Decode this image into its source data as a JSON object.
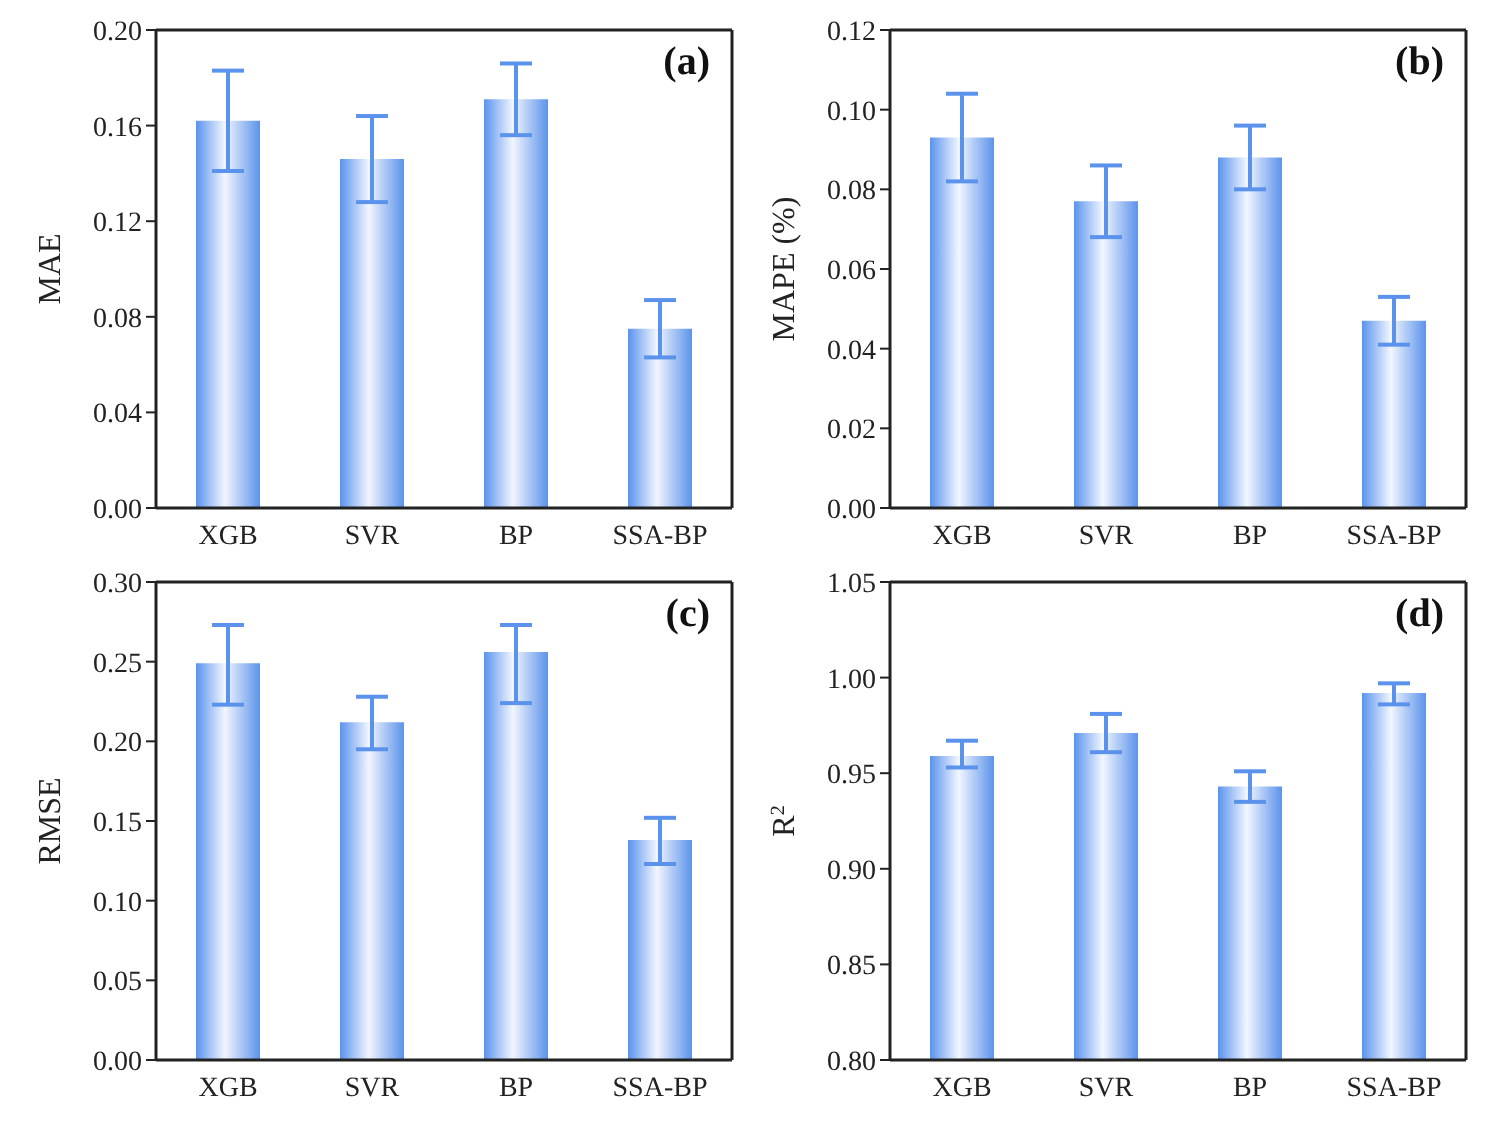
{
  "chart_data": [
    {
      "type": "bar",
      "ylabel": "MAE",
      "annotations": [
        "(a)"
      ],
      "categories": [
        "XGB",
        "SVR",
        "BP",
        "SSA-BP"
      ],
      "values": [
        0.162,
        0.146,
        0.171,
        0.075
      ],
      "errors": [
        [
          0.141,
          0.183
        ],
        [
          0.128,
          0.164
        ],
        [
          0.156,
          0.186
        ],
        [
          0.063,
          0.087
        ]
      ],
      "color": "#5b93ec",
      "ylim": [
        0,
        0.2
      ],
      "yticks": [
        {
          "value": 0,
          "label": "0.00"
        },
        {
          "value": 0.04,
          "label": "0.04"
        },
        {
          "value": 0.08,
          "label": "0.08"
        },
        {
          "value": 0.12,
          "label": "0.12"
        },
        {
          "value": 0.16,
          "label": "0.16"
        },
        {
          "value": 0.2,
          "label": "0.20"
        }
      ]
    },
    {
      "type": "bar",
      "ylabel": "MAPE (%)",
      "annotations": [
        "(b)"
      ],
      "categories": [
        "XGB",
        "SVR",
        "BP",
        "SSA-BP"
      ],
      "values": [
        0.093,
        0.077,
        0.088,
        0.047
      ],
      "errors": [
        [
          0.082,
          0.104
        ],
        [
          0.068,
          0.086
        ],
        [
          0.08,
          0.096
        ],
        [
          0.041,
          0.053
        ]
      ],
      "color": "#5b93ec",
      "ylim": [
        0,
        0.12
      ],
      "yticks": [
        {
          "value": 0,
          "label": "0.00"
        },
        {
          "value": 0.02,
          "label": "0.02"
        },
        {
          "value": 0.04,
          "label": "0.04"
        },
        {
          "value": 0.06,
          "label": "0.06"
        },
        {
          "value": 0.08,
          "label": "0.08"
        },
        {
          "value": 0.1,
          "label": "0.10"
        },
        {
          "value": 0.12,
          "label": "0.12"
        }
      ]
    },
    {
      "type": "bar",
      "ylabel": "RMSE",
      "annotations": [
        "(c)"
      ],
      "categories": [
        "XGB",
        "SVR",
        "BP",
        "SSA-BP"
      ],
      "values": [
        0.249,
        0.212,
        0.256,
        0.138
      ],
      "errors": [
        [
          0.223,
          0.273
        ],
        [
          0.195,
          0.228
        ],
        [
          0.224,
          0.273
        ],
        [
          0.123,
          0.152
        ]
      ],
      "color": "#5b93ec",
      "ylim": [
        0,
        0.3
      ],
      "yticks": [
        {
          "value": 0,
          "label": "0.00"
        },
        {
          "value": 0.05,
          "label": "0.05"
        },
        {
          "value": 0.1,
          "label": "0.10"
        },
        {
          "value": 0.15,
          "label": "0.15"
        },
        {
          "value": 0.2,
          "label": "0.20"
        },
        {
          "value": 0.25,
          "label": "0.25"
        },
        {
          "value": 0.3,
          "label": "0.30"
        }
      ]
    },
    {
      "type": "bar",
      "ylabel": "R$^{2}$",
      "annotations": [
        "(d)"
      ],
      "categories": [
        "XGB",
        "SVR",
        "BP",
        "SSA-BP"
      ],
      "values": [
        0.959,
        0.971,
        0.943,
        0.992
      ],
      "errors": [
        [
          0.953,
          0.967
        ],
        [
          0.961,
          0.981
        ],
        [
          0.935,
          0.951
        ],
        [
          0.986,
          0.997
        ]
      ],
      "color": "#5b93ec",
      "ylim": [
        0.8,
        1.05
      ],
      "yticks": [
        {
          "value": 0.8,
          "label": "0.80"
        },
        {
          "value": 0.85,
          "label": "0.85"
        },
        {
          "value": 0.9,
          "label": "0.90"
        },
        {
          "value": 0.95,
          "label": "0.95"
        },
        {
          "value": 1,
          "label": "1.00"
        },
        {
          "value": 1.05,
          "label": "1.05"
        }
      ]
    }
  ]
}
